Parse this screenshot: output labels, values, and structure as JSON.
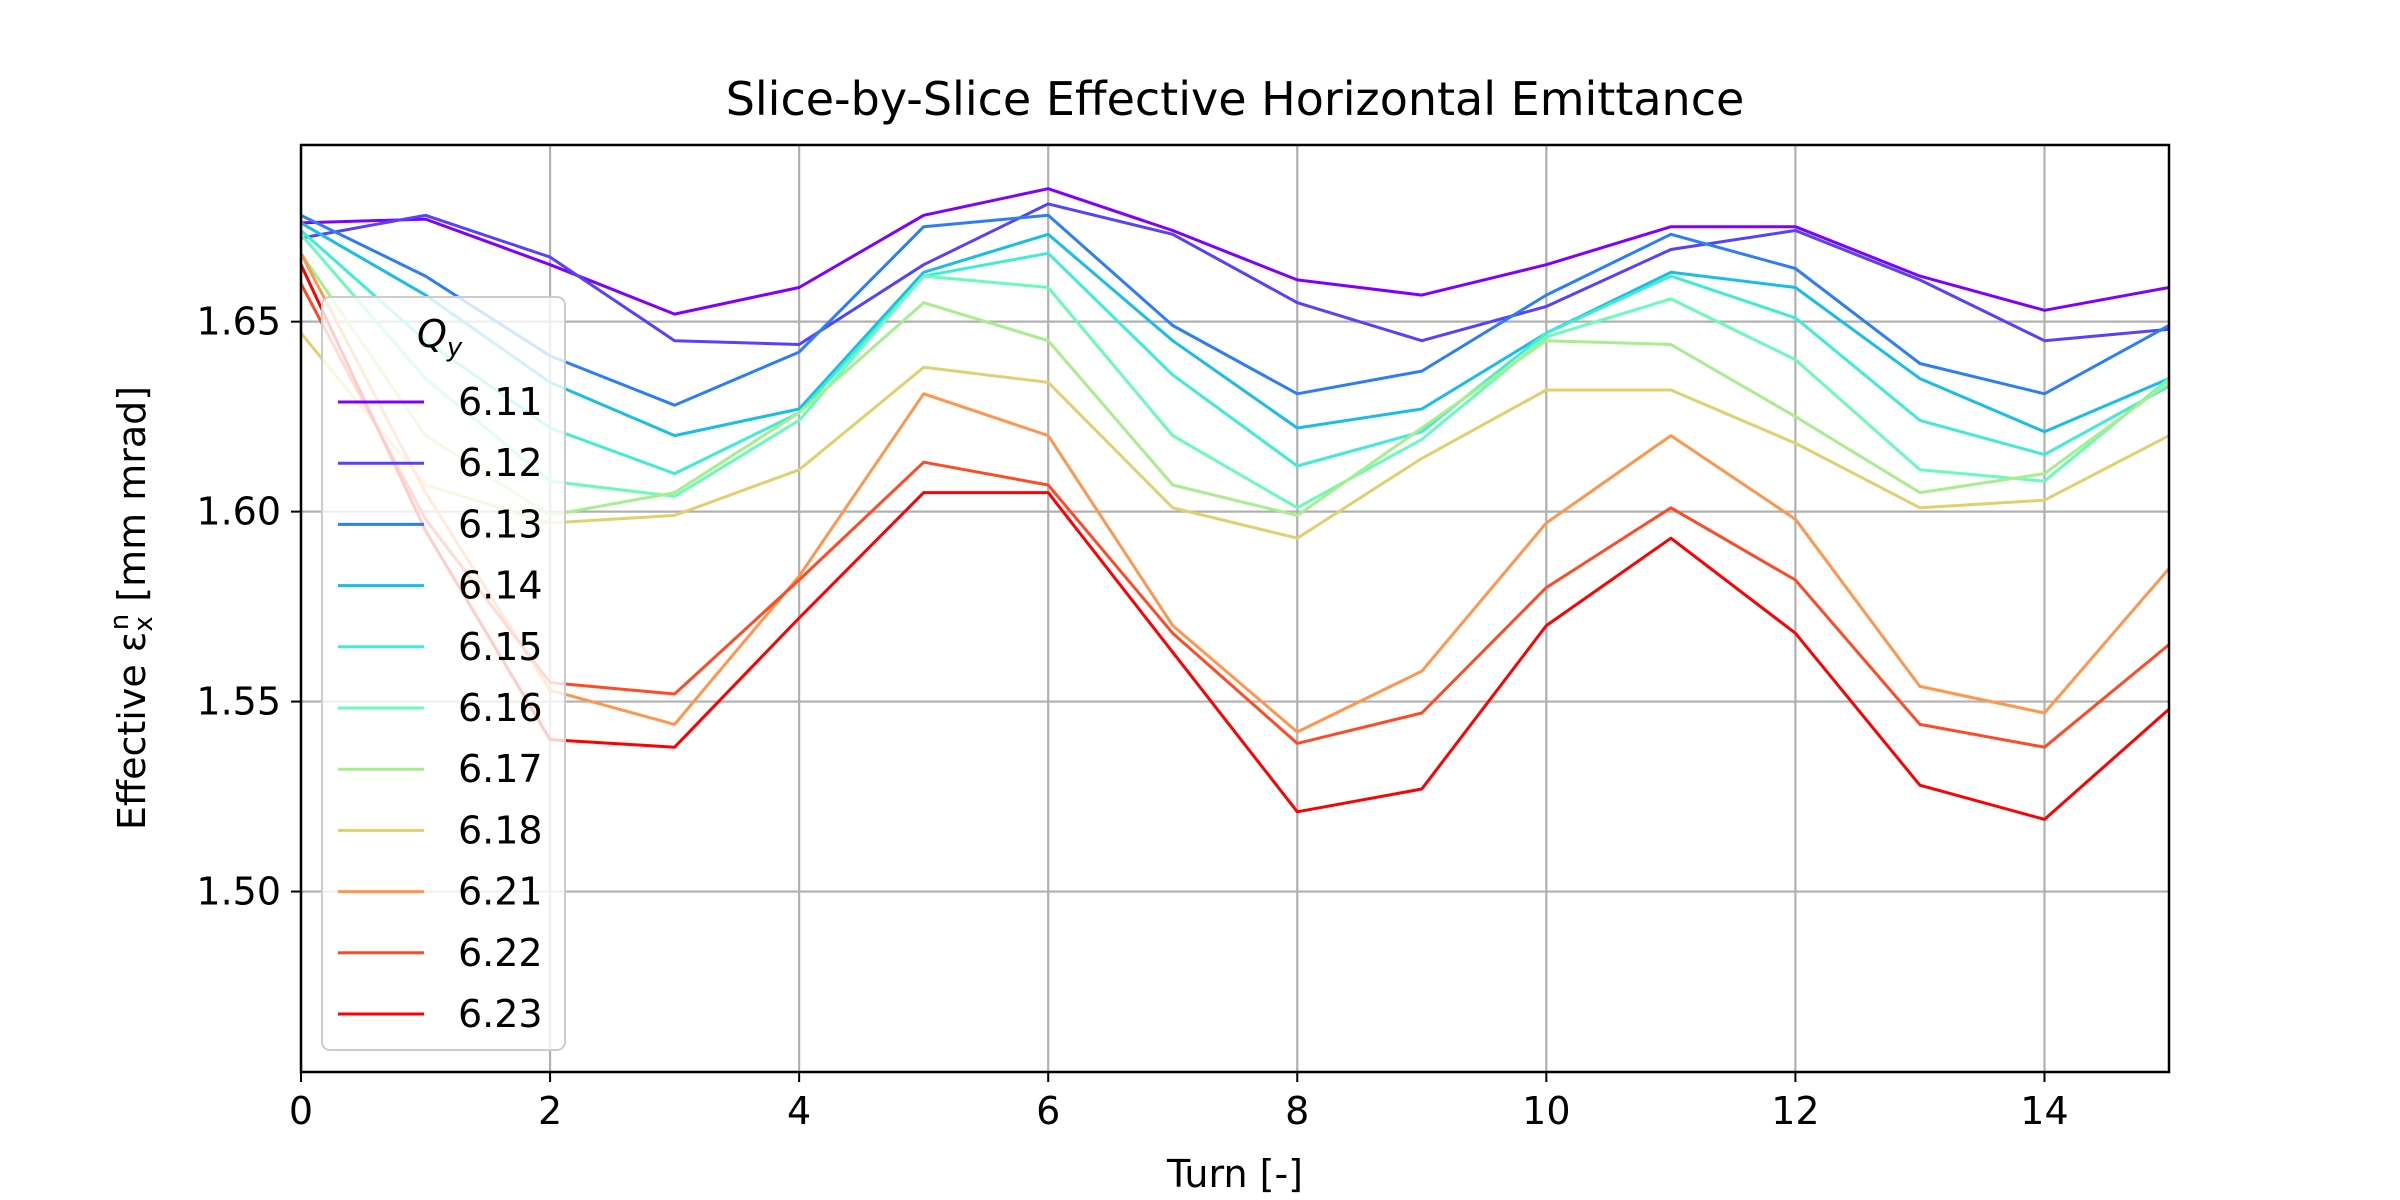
{
  "chart_data": {
    "type": "line",
    "title": "Slice-by-Slice Effective Horizontal Emittance",
    "xlabel": "Turn [-]",
    "ylabel": "Effective ε",
    "ylabel_sup": "n",
    "ylabel_sub": "x",
    "ylabel_unit": " [mm mrad]",
    "legend_title": "Q",
    "legend_title_sub": "y",
    "legend_position": "left",
    "grid": true,
    "xlim": [
      0,
      15
    ],
    "ylim": [
      1.4525,
      1.6965
    ],
    "x_ticks": [
      0,
      2,
      4,
      6,
      8,
      10,
      12,
      14
    ],
    "x_tick_labels": [
      "0",
      "2",
      "4",
      "6",
      "8",
      "10",
      "12",
      "14"
    ],
    "y_ticks": [
      1.5,
      1.55,
      1.6,
      1.65
    ],
    "y_tick_labels": [
      "1.50",
      "1.55",
      "1.60",
      "1.65"
    ],
    "x": [
      0,
      1,
      2,
      3,
      4,
      5,
      6,
      7,
      8,
      9,
      10,
      11,
      12,
      13,
      14,
      15
    ],
    "series": [
      {
        "name": "6.11",
        "color": "#8000ff",
        "values": [
          1.676,
          1.677,
          1.665,
          1.652,
          1.659,
          1.678,
          1.685,
          1.674,
          1.661,
          1.657,
          1.665,
          1.675,
          1.675,
          1.662,
          1.653,
          1.659
        ]
      },
      {
        "name": "6.12",
        "color": "#5641fd",
        "values": [
          1.672,
          1.678,
          1.667,
          1.645,
          1.644,
          1.665,
          1.681,
          1.673,
          1.655,
          1.645,
          1.654,
          1.669,
          1.674,
          1.661,
          1.645,
          1.648
        ]
      },
      {
        "name": "6.13",
        "color": "#2c7ef7",
        "values": [
          1.678,
          1.662,
          1.641,
          1.628,
          1.642,
          1.675,
          1.678,
          1.649,
          1.631,
          1.637,
          1.657,
          1.673,
          1.664,
          1.639,
          1.631,
          1.649
        ]
      },
      {
        "name": "6.14",
        "color": "#18bde8",
        "values": [
          1.676,
          1.657,
          1.634,
          1.62,
          1.627,
          1.663,
          1.673,
          1.645,
          1.622,
          1.627,
          1.647,
          1.663,
          1.659,
          1.635,
          1.621,
          1.635
        ]
      },
      {
        "name": "6.15",
        "color": "#40ecd4",
        "values": [
          1.674,
          1.645,
          1.622,
          1.61,
          1.626,
          1.662,
          1.668,
          1.636,
          1.612,
          1.621,
          1.647,
          1.662,
          1.651,
          1.624,
          1.615,
          1.633
        ]
      },
      {
        "name": "6.16",
        "color": "#6afbbb",
        "values": [
          1.673,
          1.635,
          1.608,
          1.604,
          1.624,
          1.662,
          1.659,
          1.62,
          1.601,
          1.619,
          1.646,
          1.656,
          1.64,
          1.611,
          1.608,
          1.635
        ]
      },
      {
        "name": "6.17",
        "color": "#a8ee8e",
        "values": [
          1.668,
          1.62,
          1.599,
          1.605,
          1.626,
          1.655,
          1.645,
          1.607,
          1.599,
          1.622,
          1.645,
          1.644,
          1.625,
          1.605,
          1.61,
          1.634
        ]
      },
      {
        "name": "6.18",
        "color": "#e0d16f",
        "values": [
          1.647,
          1.607,
          1.597,
          1.599,
          1.611,
          1.638,
          1.634,
          1.601,
          1.593,
          1.614,
          1.632,
          1.632,
          1.618,
          1.601,
          1.603,
          1.62
        ]
      },
      {
        "name": "6.21",
        "color": "#ff964d",
        "values": [
          1.668,
          1.605,
          1.553,
          1.544,
          1.583,
          1.631,
          1.62,
          1.57,
          1.542,
          1.558,
          1.597,
          1.62,
          1.598,
          1.554,
          1.547,
          1.585
        ]
      },
      {
        "name": "6.22",
        "color": "#ff4b25",
        "values": [
          1.66,
          1.598,
          1.555,
          1.552,
          1.582,
          1.613,
          1.607,
          1.568,
          1.539,
          1.547,
          1.58,
          1.601,
          1.582,
          1.544,
          1.538,
          1.565
        ]
      },
      {
        "name": "6.23",
        "color": "#ff0000",
        "values": [
          1.665,
          1.595,
          1.54,
          1.538,
          1.572,
          1.605,
          1.605,
          1.563,
          1.521,
          1.527,
          1.57,
          1.593,
          1.568,
          1.528,
          1.519,
          1.548
        ]
      }
    ]
  }
}
